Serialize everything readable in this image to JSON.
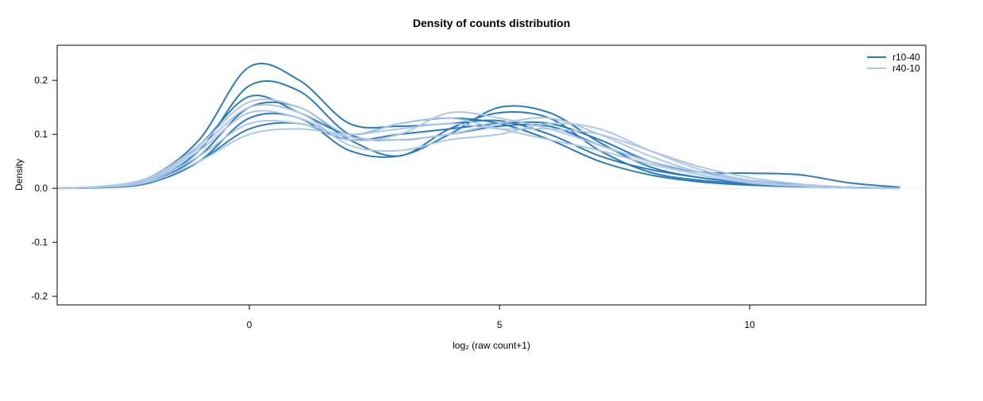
{
  "chart_data": {
    "type": "line",
    "title": "Density of counts distribution",
    "xlabel": "log₂ (raw count+1)",
    "ylabel": "Density",
    "xlim": [
      -3.84,
      13.52
    ],
    "ylim": [
      -0.216,
      0.265
    ],
    "xticks": [
      0,
      5,
      10
    ],
    "yticks": [
      -0.2,
      -0.1,
      0.0,
      0.1,
      0.2
    ],
    "ytick_labels": [
      "-0.2",
      "-0.1",
      "0.0",
      "0.1",
      "0.2"
    ],
    "grid": false,
    "zero_line": true,
    "legend_position": "top-right",
    "x": [
      -4,
      -3,
      -2,
      -1,
      0,
      1,
      2,
      3,
      4,
      5,
      6,
      7,
      8,
      9,
      10,
      11,
      12,
      13
    ],
    "groups": [
      {
        "name": "r10-40",
        "color": "#2b7bba",
        "curves": [
          [
            0,
            0.003,
            0.02,
            0.09,
            0.225,
            0.2,
            0.12,
            0.115,
            0.12,
            0.125,
            0.1,
            0.06,
            0.035,
            0.02,
            0.01,
            0.005,
            0.002,
            0
          ],
          [
            0,
            0.002,
            0.015,
            0.07,
            0.19,
            0.18,
            0.1,
            0.09,
            0.1,
            0.115,
            0.115,
            0.08,
            0.05,
            0.03,
            0.028,
            0.025,
            0.01,
            0.002
          ],
          [
            0,
            0.002,
            0.012,
            0.06,
            0.15,
            0.15,
            0.09,
            0.06,
            0.11,
            0.14,
            0.13,
            0.07,
            0.03,
            0.015,
            0.008,
            0.004,
            0.001,
            0
          ],
          [
            0,
            0.002,
            0.01,
            0.05,
            0.13,
            0.13,
            0.07,
            0.06,
            0.1,
            0.15,
            0.14,
            0.085,
            0.04,
            0.02,
            0.01,
            0.004,
            0.001,
            0
          ],
          [
            0,
            0.003,
            0.018,
            0.08,
            0.17,
            0.14,
            0.1,
            0.12,
            0.13,
            0.12,
            0.09,
            0.05,
            0.025,
            0.012,
            0.006,
            0.003,
            0.001,
            0
          ],
          [
            0,
            0.001,
            0.01,
            0.05,
            0.11,
            0.12,
            0.09,
            0.1,
            0.11,
            0.12,
            0.12,
            0.09,
            0.05,
            0.03,
            0.015,
            0.006,
            0.002,
            0
          ]
        ]
      },
      {
        "name": "r40-10",
        "color": "#aec7e8",
        "curves": [
          [
            0,
            0.003,
            0.02,
            0.08,
            0.16,
            0.15,
            0.1,
            0.12,
            0.13,
            0.11,
            0.09,
            0.07,
            0.045,
            0.025,
            0.01,
            0.004,
            0.001,
            0
          ],
          [
            0,
            0.002,
            0.012,
            0.05,
            0.1,
            0.11,
            0.1,
            0.11,
            0.12,
            0.11,
            0.11,
            0.1,
            0.07,
            0.04,
            0.02,
            0.008,
            0.002,
            0
          ],
          [
            0,
            0.003,
            0.018,
            0.07,
            0.14,
            0.13,
            0.09,
            0.1,
            0.14,
            0.13,
            0.11,
            0.08,
            0.05,
            0.03,
            0.012,
            0.005,
            0.001,
            0
          ],
          [
            0,
            0.002,
            0.015,
            0.06,
            0.12,
            0.12,
            0.095,
            0.09,
            0.1,
            0.12,
            0.13,
            0.1,
            0.06,
            0.03,
            0.014,
            0.005,
            0.001,
            0
          ],
          [
            0,
            0.003,
            0.02,
            0.075,
            0.15,
            0.14,
            0.08,
            0.07,
            0.09,
            0.1,
            0.12,
            0.11,
            0.07,
            0.035,
            0.015,
            0.005,
            0.001,
            0
          ]
        ]
      }
    ]
  }
}
